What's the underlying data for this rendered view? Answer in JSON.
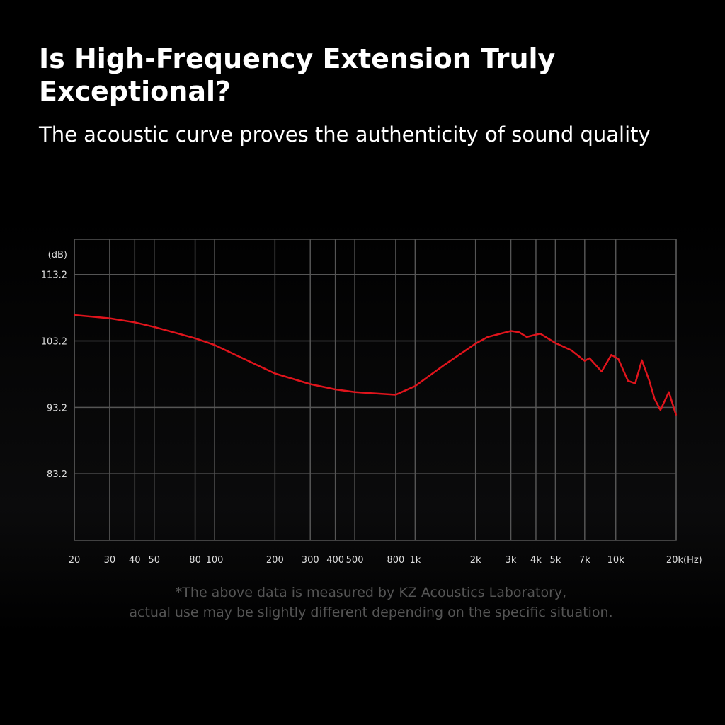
{
  "chart_data": {
    "type": "line",
    "log_x": true,
    "title": "Is High-Frequency Extension Truly Exceptional?",
    "subtitle": "The acoustic curve proves the authenticity of sound quality",
    "y_unit": "(dB)",
    "x_unit": "(Hz)",
    "footnote": [
      "*The above data is measured by KZ Acoustics Laboratory,",
      "actual use may be slightly different depending on the specific situation."
    ],
    "grid": true,
    "xlim": [
      20,
      20000
    ],
    "ylim": [
      73.2,
      118.5
    ],
    "xticks": [
      20,
      30,
      40,
      50,
      80,
      100,
      200,
      300,
      400,
      500,
      800,
      {
        "value": 1000,
        "label": "1k"
      },
      {
        "value": 2000,
        "label": "2k"
      },
      {
        "value": 3000,
        "label": "3k"
      },
      {
        "value": 4000,
        "label": "4k"
      },
      {
        "value": 5000,
        "label": "5k"
      },
      {
        "value": 7000,
        "label": "7k"
      },
      {
        "value": 10000,
        "label": "10k"
      },
      {
        "value": 20000,
        "label": "20k"
      }
    ],
    "yticks": [
      113.2,
      103.2,
      93.2,
      83.2
    ],
    "x": [
      20,
      30,
      40,
      50,
      80,
      100,
      200,
      300,
      400,
      500,
      800,
      1000,
      1400,
      2000,
      2300,
      3000,
      3300,
      3600,
      4200,
      5000,
      6000,
      7000,
      7400,
      8500,
      9500,
      10300,
      11500,
      12500,
      13500,
      14700,
      15600,
      16700,
      18400,
      20000
    ],
    "series": [
      {
        "color": "#e0141c",
        "values": [
          107.1,
          106.6,
          106.0,
          105.3,
          103.6,
          102.6,
          98.3,
          96.7,
          95.9,
          95.5,
          95.1,
          96.4,
          99.6,
          102.8,
          103.8,
          104.7,
          104.5,
          103.8,
          104.3,
          102.9,
          101.8,
          100.2,
          100.6,
          98.6,
          101.1,
          100.5,
          97.2,
          96.8,
          100.3,
          97.2,
          94.5,
          92.8,
          95.5,
          92.0
        ]
      }
    ]
  }
}
